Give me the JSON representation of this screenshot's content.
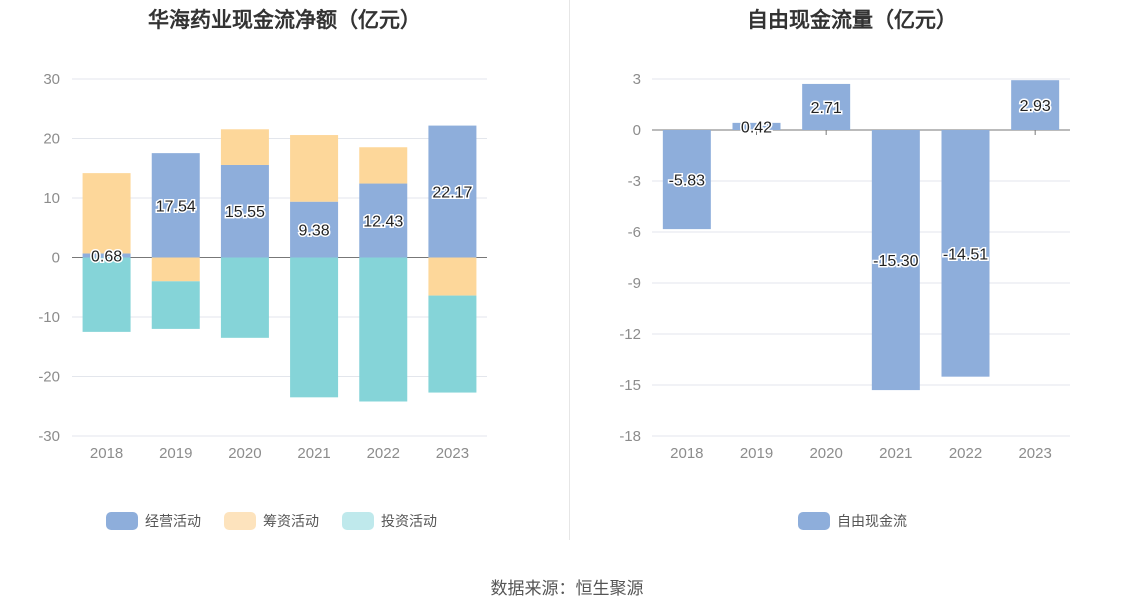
{
  "chart_data": [
    {
      "type": "bar",
      "stacked": true,
      "title": "华海药业现金流净额（亿元）",
      "categories": [
        "2018",
        "2019",
        "2020",
        "2021",
        "2022",
        "2023"
      ],
      "ylim": [
        -30,
        30
      ],
      "yticks": [
        30,
        20,
        10,
        0,
        -10,
        -20,
        -30
      ],
      "series": [
        {
          "name": "经营活动",
          "color": "#8eaedb",
          "values": [
            0.68,
            17.54,
            15.55,
            9.38,
            12.43,
            22.17
          ],
          "labels": [
            "0.68",
            "17.54",
            "15.55",
            "9.38",
            "12.43",
            "22.17"
          ]
        },
        {
          "name": "筹资活动",
          "color": "#fdd79a",
          "values": [
            13.5,
            -4.0,
            6.0,
            11.2,
            6.1,
            -6.4
          ]
        },
        {
          "name": "投资活动",
          "color": "#85d4d8",
          "values": [
            -12.5,
            -8.0,
            -13.5,
            -23.5,
            -24.2,
            -16.3
          ]
        }
      ],
      "legend": [
        {
          "name": "经营活动",
          "color": "#8eaedb"
        },
        {
          "name": "筹资活动",
          "color": "#fde3bd"
        },
        {
          "name": "投资活动",
          "color": "#bfe9ec"
        }
      ]
    },
    {
      "type": "bar",
      "title": "自由现金流量（亿元）",
      "categories": [
        "2018",
        "2019",
        "2020",
        "2021",
        "2022",
        "2023"
      ],
      "ylim": [
        -18,
        3
      ],
      "yticks": [
        3,
        0,
        -3,
        -6,
        -9,
        -12,
        -15,
        -18
      ],
      "series": [
        {
          "name": "自由现金流",
          "color": "#8eaedb",
          "values": [
            -5.83,
            0.42,
            2.71,
            -15.3,
            -14.51,
            2.93
          ],
          "labels": [
            "-5.83",
            "0.42",
            "2.71",
            "-15.30",
            "-14.51",
            "2.93"
          ]
        }
      ],
      "legend": [
        {
          "name": "自由现金流",
          "color": "#8eaedb"
        }
      ]
    }
  ],
  "source": "数据来源：恒生聚源"
}
